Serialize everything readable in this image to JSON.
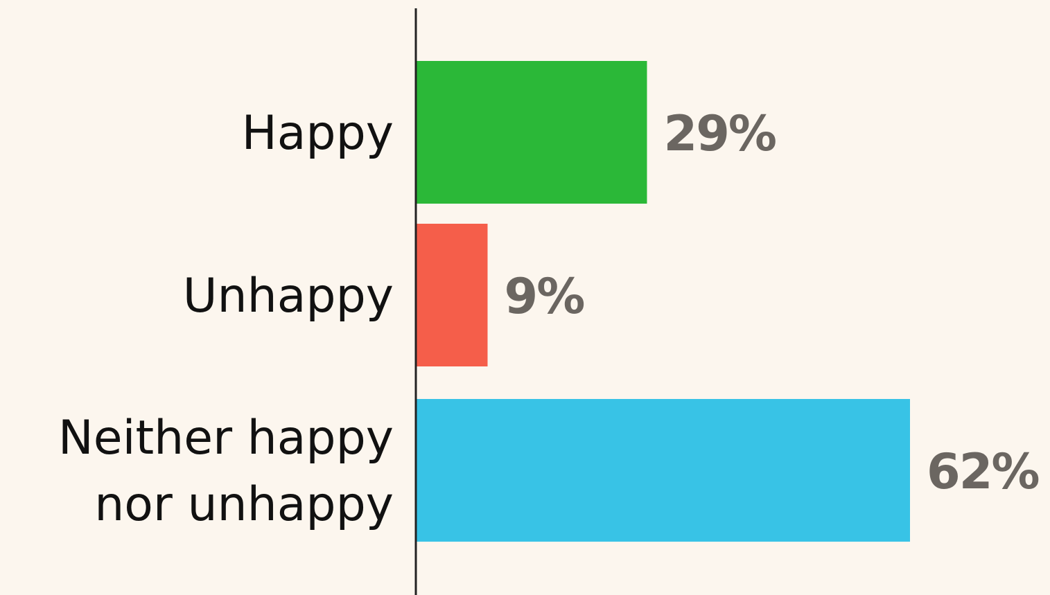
{
  "chart_data": {
    "type": "bar",
    "orientation": "horizontal",
    "categories": [
      [
        "Happy"
      ],
      [
        "Unhappy"
      ],
      [
        "Neither happy",
        "nor unhappy"
      ]
    ],
    "values": [
      29,
      9,
      62
    ],
    "value_labels": [
      "29%",
      "9%",
      "62%"
    ],
    "colors": [
      "#2bb838",
      "#f55e4a",
      "#38c3e6"
    ],
    "axis_color": "#222222",
    "title": "",
    "xlabel": "",
    "ylabel": "",
    "xlim": [
      0,
      62
    ],
    "grid": false,
    "legend": "none"
  }
}
